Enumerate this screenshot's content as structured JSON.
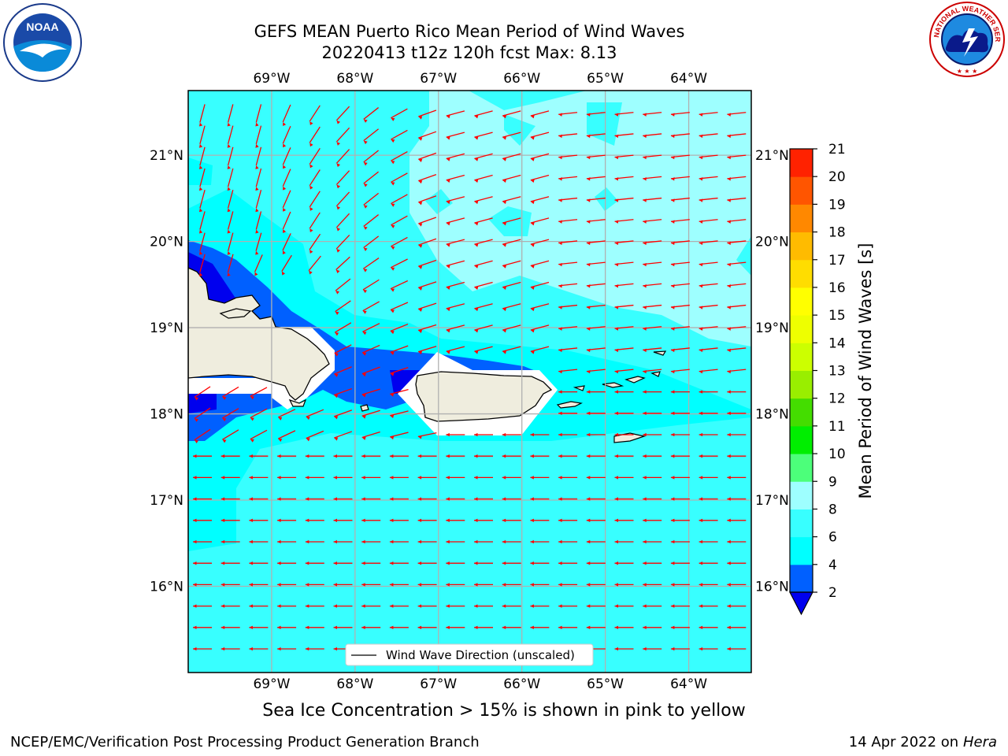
{
  "title_line1": "GEFS MEAN Puerto Rico Mean Period of Wind Waves",
  "title_line2": "20220413 t12z 120h fcst   Max: 8.13",
  "subtitle": "Sea Ice Concentration > 15% is shown in pink to yellow",
  "credit": "NCEP/EMC/Verification Post Processing Product Generation Branch",
  "datestamp_prefix": "14 Apr 2022 on ",
  "datestamp_host": "Hera",
  "legend_label": "Wind Wave Direction (unscaled)",
  "logos": {
    "noaa_text": "NOAA",
    "nws_text": "NATIONAL WEATHER SERVICE"
  },
  "map": {
    "lon_range": [
      -70.0,
      -63.25
    ],
    "lat_range": [
      15.0,
      21.75
    ],
    "lon_ticks": [
      "69°W",
      "68°W",
      "67°W",
      "66°W",
      "65°W",
      "64°W"
    ],
    "lat_ticks": [
      "16°N",
      "17°N",
      "18°N",
      "19°N",
      "20°N",
      "21°N"
    ],
    "grid": true,
    "arrow_color": "#ff0000",
    "land_color": "#efedde",
    "ocean_base_color": "#38ffff"
  },
  "colorbar": {
    "label": "Mean Period of Wind Waves [s]",
    "ticks": [
      "2",
      "4",
      "6",
      "8",
      "9",
      "10",
      "11",
      "12",
      "13",
      "14",
      "15",
      "16",
      "17",
      "18",
      "19",
      "20",
      "21"
    ],
    "colors": [
      "#0060ff",
      "#00ffff",
      "#38ffff",
      "#9effff",
      "#4cff7a",
      "#00ee00",
      "#44dd00",
      "#99ee00",
      "#ccff00",
      "#eeff00",
      "#ffff00",
      "#ffdd00",
      "#ffbb00",
      "#ff8800",
      "#ff5500",
      "#ff2200"
    ],
    "under_color": "#0000ee"
  }
}
